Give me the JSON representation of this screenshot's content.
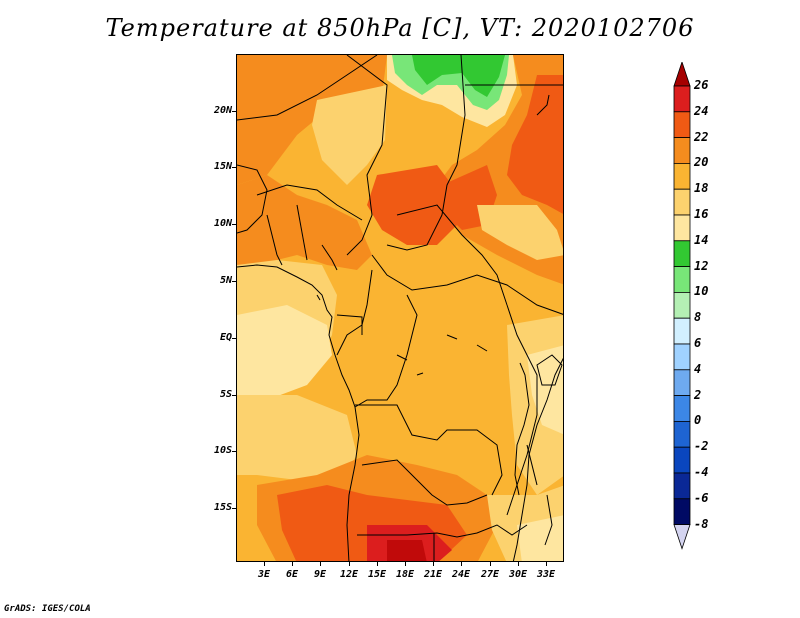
{
  "title": "Temperature at 850hPa [C], VT: 2020102706",
  "footer": "GrADS: IGES/COLA",
  "lat_labels": [
    "20N",
    "15N",
    "10N",
    "5N",
    "EQ",
    "5S",
    "10S",
    "15S"
  ],
  "lon_labels": [
    "3E",
    "6E",
    "9E",
    "12E",
    "15E",
    "18E",
    "21E",
    "24E",
    "27E",
    "30E",
    "33E"
  ],
  "colorbar": {
    "labels": [
      "26",
      "24",
      "22",
      "20",
      "18",
      "16",
      "14",
      "12",
      "10",
      "8",
      "6",
      "4",
      "2",
      "0",
      "-2",
      "-4",
      "-6",
      "-8"
    ],
    "colors": [
      "#a50000",
      "#dc1e1e",
      "#f05a14",
      "#f58c1e",
      "#fab432",
      "#fcd26e",
      "#fee6a0",
      "#32c832",
      "#78e678",
      "#b4f0b4",
      "#d2f0ff",
      "#a0d2ff",
      "#6eaaf0",
      "#3c87e6",
      "#1e64d2",
      "#0a46be",
      "#0a2896",
      "#000a64",
      "#d4d4f0"
    ]
  }
}
